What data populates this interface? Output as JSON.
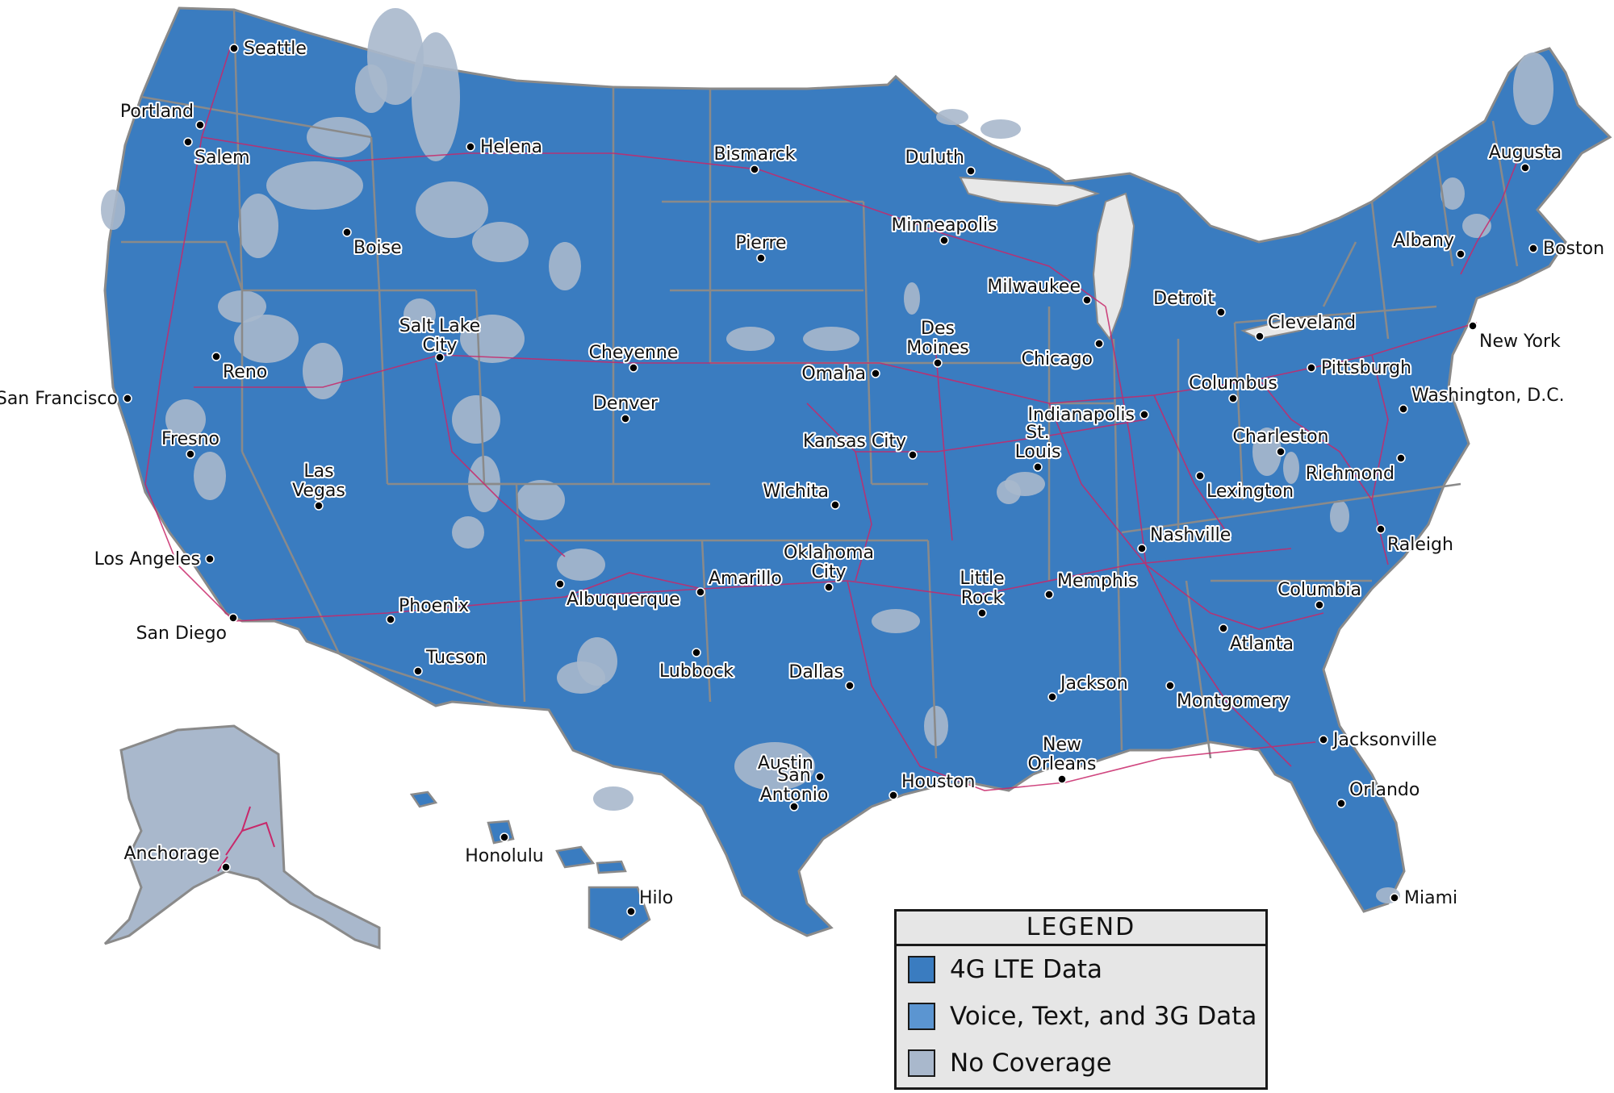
{
  "colors": {
    "lte": "#3a7cc0",
    "voice_3g": "#5b95d1",
    "no_coverage": "#a9b8cc",
    "border": "#8a8a8a",
    "roads": "#c8286a"
  },
  "legend": {
    "title": "LEGEND",
    "items": [
      {
        "label": "4G LTE Data",
        "color": "#3a7cc0"
      },
      {
        "label": "Voice, Text, and 3G Data",
        "color": "#5b95d1"
      },
      {
        "label": "No Coverage",
        "color": "#a9b8cc"
      }
    ]
  },
  "cities": [
    {
      "name": "Seattle"
    },
    {
      "name": "Portland"
    },
    {
      "name": "Salem"
    },
    {
      "name": "Helena"
    },
    {
      "name": "Boise"
    },
    {
      "name": "Bismarck"
    },
    {
      "name": "Duluth"
    },
    {
      "name": "Minneapolis"
    },
    {
      "name": "Pierre"
    },
    {
      "name": "Augusta"
    },
    {
      "name": "Albany"
    },
    {
      "name": "Boston"
    },
    {
      "name": "Milwaukee"
    },
    {
      "name": "Detroit"
    },
    {
      "name": "Cleveland"
    },
    {
      "name": "New York"
    },
    {
      "name": "Des Moines"
    },
    {
      "name": "Chicago"
    },
    {
      "name": "Omaha"
    },
    {
      "name": "Cheyenne"
    },
    {
      "name": "Reno"
    },
    {
      "name": "Salt Lake City"
    },
    {
      "name": "San Francisco"
    },
    {
      "name": "Denver"
    },
    {
      "name": "Pittsburgh"
    },
    {
      "name": "Columbus"
    },
    {
      "name": "Washington, D.C."
    },
    {
      "name": "Indianapolis"
    },
    {
      "name": "Fresno"
    },
    {
      "name": "Kansas City"
    },
    {
      "name": "Charleston"
    },
    {
      "name": "St. Louis"
    },
    {
      "name": "Richmond"
    },
    {
      "name": "Las Vegas"
    },
    {
      "name": "Lexington"
    },
    {
      "name": "Wichita"
    },
    {
      "name": "Nashville"
    },
    {
      "name": "Raleigh"
    },
    {
      "name": "Los Angeles"
    },
    {
      "name": "Oklahoma City"
    },
    {
      "name": "Little Rock"
    },
    {
      "name": "Memphis"
    },
    {
      "name": "Amarillo"
    },
    {
      "name": "Columbia"
    },
    {
      "name": "Albuquerque"
    },
    {
      "name": "Phoenix"
    },
    {
      "name": "San Diego"
    },
    {
      "name": "Atlanta"
    },
    {
      "name": "Tucson"
    },
    {
      "name": "Lubbock"
    },
    {
      "name": "Dallas"
    },
    {
      "name": "Jackson"
    },
    {
      "name": "Montgomery"
    },
    {
      "name": "Jacksonville"
    },
    {
      "name": "Austin"
    },
    {
      "name": "Houston"
    },
    {
      "name": "New Orleans"
    },
    {
      "name": "Orlando"
    },
    {
      "name": "San Antonio"
    },
    {
      "name": "Anchorage"
    },
    {
      "name": "Honolulu"
    },
    {
      "name": "Hilo"
    },
    {
      "name": "Miami"
    }
  ]
}
